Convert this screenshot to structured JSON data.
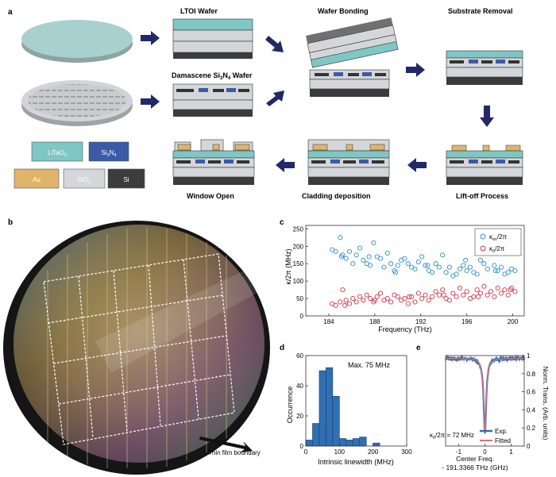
{
  "panels": {
    "a": "a",
    "b": "b",
    "c": "c",
    "d": "d",
    "e": "e"
  },
  "process": {
    "ltoi_wafer": "LTOI Wafer",
    "wafer_bonding": "Wafer Bonding",
    "substrate_removal": "Substrate Removal",
    "damascene_pre": "Damascene Si",
    "damascene_sub1": "3",
    "damascene_mid": "N",
    "damascene_sub2": "4",
    "damascene_post": " Wafer",
    "lift_off": "Lift-off Process",
    "cladding": "Cladding deposition",
    "window_open": "Window Open"
  },
  "legend_materials": {
    "litao_main": "LiTaO",
    "litao_sub": "3",
    "sin_main1": "Si",
    "sin_sub1": "3",
    "sin_main2": "N",
    "sin_sub2": "4",
    "au": "Au",
    "sio_main": "SiO",
    "sio_sub": "2",
    "si": "Si"
  },
  "colors": {
    "litao3": "#7ec7c4",
    "si3n4": "#3b5ba8",
    "au": "#e0b56a",
    "sio2": "#d4d6d9",
    "si": "#3c3c3c",
    "arrow": "#232868",
    "cyan_marker": "#2e8fc4",
    "red_marker": "#d6334a"
  },
  "photo": {
    "annotation": "Thin film boundary"
  },
  "chart_data": [
    {
      "id": "c",
      "type": "scatter",
      "xlabel": "Frequency (THz)",
      "ylabel": "κ/2π (MHz)",
      "xlim": [
        182,
        201
      ],
      "ylim": [
        0,
        260
      ],
      "xticks": [
        184,
        188,
        192,
        196,
        200
      ],
      "yticks": [
        0,
        50,
        100,
        150,
        200,
        250
      ],
      "legend_position": "top-right",
      "series": [
        {
          "name_main": "κ",
          "name_sub": "ex",
          "name_tail": "/2π",
          "color": "#2e8fc4",
          "x": [
            184.3,
            184.6,
            185.0,
            185.2,
            185.5,
            185.8,
            186.1,
            186.4,
            186.7,
            187.0,
            187.3,
            187.6,
            187.9,
            188.2,
            188.5,
            188.8,
            189.1,
            189.4,
            189.7,
            190.0,
            190.3,
            190.6,
            190.9,
            191.2,
            191.5,
            191.8,
            192.1,
            192.4,
            192.7,
            193.0,
            193.3,
            193.6,
            193.9,
            194.2,
            194.5,
            194.8,
            195.1,
            195.4,
            195.7,
            196.0,
            196.3,
            196.6,
            196.9,
            197.2,
            197.5,
            197.8,
            198.1,
            198.4,
            198.7,
            199.0,
            199.3,
            199.6,
            199.9,
            200.2,
            185.1,
            187.5,
            189.8,
            192.6,
            195.9,
            198.5
          ],
          "y": [
            190,
            185,
            225,
            175,
            165,
            185,
            150,
            175,
            195,
            160,
            150,
            145,
            210,
            170,
            165,
            140,
            180,
            150,
            130,
            145,
            160,
            165,
            150,
            140,
            135,
            155,
            170,
            145,
            130,
            125,
            150,
            140,
            175,
            125,
            140,
            115,
            120,
            135,
            145,
            130,
            140,
            125,
            120,
            160,
            150,
            135,
            180,
            145,
            130,
            140,
            120,
            125,
            135,
            130,
            170,
            170,
            125,
            145,
            160,
            130
          ]
        },
        {
          "name_main": "κ",
          "name_sub": "0",
          "name_tail": "/2π",
          "color": "#d6334a",
          "x": [
            184.3,
            184.6,
            185.0,
            185.2,
            185.5,
            185.8,
            186.1,
            186.4,
            186.7,
            187.0,
            187.3,
            187.6,
            187.9,
            188.2,
            188.5,
            188.8,
            189.1,
            189.4,
            189.7,
            190.0,
            190.3,
            190.6,
            190.9,
            191.2,
            191.5,
            191.8,
            192.1,
            192.4,
            192.7,
            193.0,
            193.3,
            193.6,
            193.9,
            194.2,
            194.5,
            194.8,
            195.1,
            195.4,
            195.7,
            196.0,
            196.3,
            196.6,
            196.9,
            197.2,
            197.5,
            197.8,
            198.1,
            198.4,
            198.7,
            199.0,
            199.3,
            199.6,
            199.9,
            200.2,
            185.4,
            188.0,
            191.0,
            194.0,
            197.0,
            199.8
          ],
          "y": [
            35,
            30,
            40,
            75,
            45,
            35,
            50,
            40,
            55,
            45,
            60,
            50,
            40,
            55,
            65,
            45,
            50,
            40,
            60,
            55,
            45,
            50,
            35,
            55,
            40,
            65,
            50,
            60,
            45,
            55,
            70,
            60,
            75,
            50,
            45,
            65,
            55,
            80,
            60,
            70,
            50,
            55,
            75,
            65,
            85,
            60,
            70,
            55,
            80,
            65,
            75,
            60,
            80,
            70,
            30,
            45,
            55,
            60,
            55,
            75
          ]
        }
      ]
    },
    {
      "id": "d",
      "type": "bar",
      "xlabel": "Intrinsic linewidth (MHz)",
      "ylabel": "Occurrence",
      "xlim": [
        0,
        300
      ],
      "ylim": [
        0,
        60
      ],
      "xticks": [
        0,
        100,
        200,
        300
      ],
      "yticks": [
        0,
        20,
        40,
        60
      ],
      "annotation": "Max. 75 MHz",
      "bin_width": 20,
      "bins": [
        0,
        20,
        40,
        60,
        80,
        100,
        120,
        140,
        160,
        180,
        200,
        220
      ],
      "values": [
        4,
        15,
        50,
        52,
        33,
        5,
        4,
        5,
        6,
        0,
        2,
        0
      ]
    },
    {
      "id": "e",
      "type": "line",
      "xlabel_line1": "Center Freq.",
      "xlabel_line2": "- 191.3366 THz (GHz)",
      "ylabel": "Norm. Trans. (Arb. units)",
      "xlim": [
        -1.5,
        1.5
      ],
      "ylim": [
        0,
        1
      ],
      "xticks": [
        -1,
        0,
        1
      ],
      "yticks": [
        0,
        0.2,
        0.4,
        0.6,
        0.8,
        1
      ],
      "annotation": "κ_0/2π = 72 MHz",
      "annotation_main": "κ",
      "annotation_sub": "0",
      "annotation_tail": "/2π = 72 MHz",
      "dip_center": 0,
      "dip_min": 0.15,
      "dip_baseline": 0.97,
      "dip_fwhm": 0.12,
      "series": [
        {
          "name": "Exp.",
          "color": "#2f6fb2"
        },
        {
          "name": "Fitted",
          "color": "#e2717a"
        }
      ]
    }
  ]
}
